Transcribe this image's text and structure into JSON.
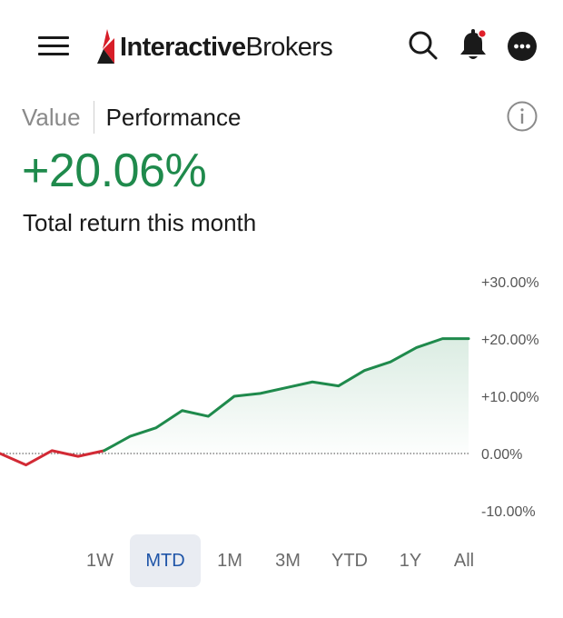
{
  "header": {
    "brand_bold": "Interactive",
    "brand_regular": "Brokers",
    "icons": [
      "menu-icon",
      "search-icon",
      "bell-icon",
      "more-icon"
    ],
    "bell_badge_color": "#e0202a"
  },
  "tabs": {
    "value_label": "Value",
    "performance_label": "Performance",
    "active": "Performance",
    "info_icon": "info-icon"
  },
  "summary": {
    "return_value": "+20.06%",
    "return_label": "Total return this month"
  },
  "colors": {
    "positive": "#1f8a4c",
    "negative": "#d22a35",
    "brand_red": "#d71e28",
    "active_range_text": "#1f55a8",
    "active_range_bg": "#e9ecf2"
  },
  "chart_data": {
    "type": "area",
    "x": [
      1,
      2,
      3,
      4,
      5,
      6,
      7,
      8,
      9,
      10,
      11,
      12,
      13,
      14,
      15,
      16,
      17,
      18,
      19
    ],
    "values": [
      0.0,
      -2.0,
      0.5,
      -0.5,
      0.5,
      3.0,
      4.5,
      7.5,
      6.5,
      10.0,
      10.5,
      11.5,
      12.5,
      11.8,
      14.5,
      16.0,
      18.5,
      20.06,
      20.06
    ],
    "negative_segment_end_index": 4,
    "ylim": [
      -10,
      30
    ],
    "yticks": [
      "+30.00%",
      "+20.00%",
      "+10.00%",
      "0.00%",
      "-10.00%"
    ],
    "ytick_values": [
      30,
      20,
      10,
      0,
      -10
    ],
    "zero_line": "dotted",
    "grid": false,
    "axis_side": "right"
  },
  "ranges": {
    "items": [
      "1W",
      "MTD",
      "1M",
      "3M",
      "YTD",
      "1Y",
      "All"
    ],
    "active": "MTD"
  }
}
